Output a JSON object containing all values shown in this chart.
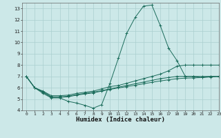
{
  "xlabel": "Humidex (Indice chaleur)",
  "background_color": "#cce8e8",
  "grid_color": "#aacfcf",
  "line_color": "#1a6b5a",
  "xlim": [
    -0.5,
    23
  ],
  "ylim": [
    4,
    13.5
  ],
  "yticks": [
    4,
    5,
    6,
    7,
    8,
    9,
    10,
    11,
    12,
    13
  ],
  "xticks": [
    0,
    1,
    2,
    3,
    4,
    5,
    6,
    7,
    8,
    9,
    10,
    11,
    12,
    13,
    14,
    15,
    16,
    17,
    18,
    19,
    20,
    21,
    22,
    23
  ],
  "series": [
    {
      "x": [
        0,
        1,
        2,
        3,
        4,
        5,
        6,
        7,
        8,
        9,
        10,
        11,
        12,
        13,
        14,
        15,
        16,
        17,
        18,
        19,
        20,
        21,
        22,
        23
      ],
      "y": [
        7.0,
        6.0,
        5.5,
        5.1,
        5.1,
        4.8,
        4.65,
        4.45,
        4.2,
        4.5,
        6.4,
        8.6,
        10.8,
        12.2,
        13.2,
        13.3,
        11.5,
        9.5,
        8.4,
        7.0,
        7.0,
        6.9,
        7.0,
        7.0
      ]
    },
    {
      "x": [
        0,
        1,
        2,
        3,
        4,
        5,
        6,
        7,
        8,
        9,
        10,
        11,
        12,
        13,
        14,
        15,
        16,
        17,
        18,
        19,
        20,
        21,
        22,
        23
      ],
      "y": [
        7.0,
        6.0,
        5.7,
        5.3,
        5.3,
        5.35,
        5.5,
        5.6,
        5.7,
        5.9,
        6.1,
        6.2,
        6.4,
        6.6,
        6.8,
        7.0,
        7.2,
        7.5,
        7.9,
        8.0,
        8.0,
        8.0,
        8.0,
        8.0
      ]
    },
    {
      "x": [
        0,
        1,
        2,
        3,
        4,
        5,
        6,
        7,
        8,
        9,
        10,
        11,
        12,
        13,
        14,
        15,
        16,
        17,
        18,
        19,
        20,
        21,
        22,
        23
      ],
      "y": [
        7.0,
        6.0,
        5.65,
        5.2,
        5.2,
        5.25,
        5.4,
        5.5,
        5.6,
        5.75,
        5.9,
        6.05,
        6.2,
        6.35,
        6.5,
        6.65,
        6.8,
        6.9,
        7.0,
        7.0,
        7.0,
        7.0,
        7.0,
        7.0
      ]
    },
    {
      "x": [
        0,
        1,
        2,
        3,
        4,
        5,
        6,
        7,
        8,
        9,
        10,
        11,
        12,
        13,
        14,
        15,
        16,
        17,
        18,
        19,
        20,
        21,
        22,
        23
      ],
      "y": [
        7.0,
        6.0,
        5.6,
        5.15,
        5.15,
        5.2,
        5.35,
        5.45,
        5.55,
        5.7,
        5.85,
        5.98,
        6.1,
        6.22,
        6.35,
        6.48,
        6.6,
        6.7,
        6.8,
        6.85,
        6.87,
        6.9,
        6.95,
        7.0
      ]
    }
  ]
}
